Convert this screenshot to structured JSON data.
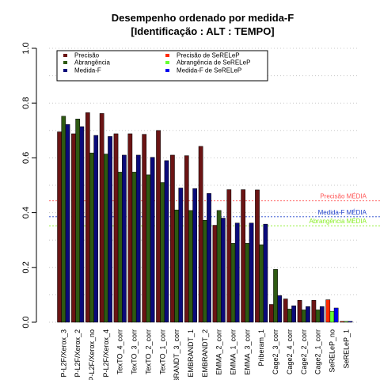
{
  "chart_data": {
    "type": "bar",
    "title": "Desempenho ordenado por medida-F",
    "subtitle": "[Identificação : ALT : TEMPO]",
    "xlabel": "",
    "ylabel": "",
    "ylim": [
      0,
      1
    ],
    "yticks": [
      "0.0",
      "0.2",
      "0.4",
      "0.6",
      "0.8",
      "1.0"
    ],
    "grid": "horizontal dotted",
    "legend_position": "top",
    "colors": {
      "precisao": "#6b1414",
      "abrangencia": "#2e5a12",
      "medidaf": "#0a0a7a",
      "precisao_serelep": "#ff2a00",
      "abrangencia_serelep": "#66ff33",
      "medidaf_serelep": "#0000ee",
      "ref_precisao": "#ff5555",
      "ref_medidaf": "#2244cc",
      "ref_abrangencia": "#88ee22"
    },
    "categories": [
      "P-L2F/Xerox_3",
      "P-L2F/Xerox_2",
      "P-L2F/Xerox_no",
      "P-L2F/Xerox_4",
      "TexTO_4_corr",
      "TexTO_3_corr",
      "TexTO_2_corr",
      "TexTO_1_corr",
      "EMBRANDT_3_corr",
      "EMBRANDT_1",
      "EMBRANDT_2",
      "EMMA_2_corr",
      "EMMA_1_corr",
      "EMMA_3_corr",
      "Priberam_1",
      "Cage2_3_corr",
      "Cage2_4_corr",
      "Cage2_2_corr",
      "Cage2_1_corr",
      "SeRELeP_no",
      "SeRELeP_1"
    ],
    "series": [
      {
        "name": "Precisão",
        "values": [
          0.695,
          0.688,
          0.765,
          0.762,
          0.688,
          0.688,
          0.686,
          0.7,
          0.61,
          0.608,
          0.642,
          0.354,
          0.484,
          0.484,
          0.483,
          0.065,
          0.085,
          0.08,
          0.08,
          0.082,
          0.003
        ]
      },
      {
        "name": "Abrangência",
        "values": [
          0.752,
          0.742,
          0.618,
          0.614,
          0.548,
          0.548,
          0.538,
          0.51,
          0.41,
          0.408,
          0.372,
          0.408,
          0.288,
          0.288,
          0.283,
          0.193,
          0.048,
          0.045,
          0.045,
          0.04,
          0.003
        ]
      },
      {
        "name": "Medida-F",
        "values": [
          0.722,
          0.714,
          0.682,
          0.678,
          0.61,
          0.61,
          0.602,
          0.59,
          0.49,
          0.488,
          0.47,
          0.38,
          0.362,
          0.362,
          0.358,
          0.097,
          0.06,
          0.057,
          0.057,
          0.052,
          0.003
        ]
      }
    ],
    "serelep_indices": [
      19,
      20
    ],
    "legend_left": [
      "Precisão",
      "Abrangência",
      "Medida-F"
    ],
    "legend_right": [
      "Precisão  de  SeRELeP",
      "Abrangência  de  SeRELeP",
      "Medida-F  de  SeRELeP"
    ],
    "reference_lines": [
      {
        "label": "Precisão MÉDIA",
        "value": 0.443
      },
      {
        "label": "Medida-F MÉDIA",
        "value": 0.385
      },
      {
        "label": "Abrangência MÉDIA",
        "value": 0.352
      }
    ]
  }
}
